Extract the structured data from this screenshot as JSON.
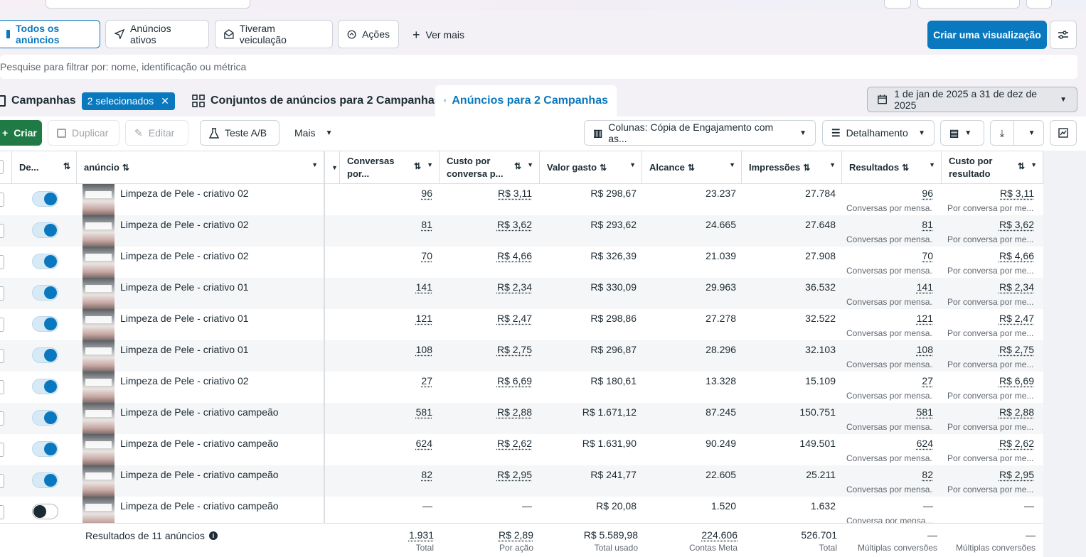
{
  "filters": {
    "all_ads": "Todos os anúncios",
    "active_ads": "Anúncios ativos",
    "delivered": "Tiveram veiculação",
    "actions": "Ações",
    "see_more": "Ver mais",
    "create_view": "Criar uma visualização"
  },
  "search": {
    "placeholder": "Pesquise para filtrar por: nome, identificação ou métrica"
  },
  "tabs": {
    "campaigns": "Campanhas",
    "selected_chip": "2 selecionados",
    "adsets": "Conjuntos de anúncios para 2 Campanhas",
    "ads": "Anúncios para 2 Campanhas"
  },
  "date_range": "1 de jan de 2025 a 31 de dez de 2025",
  "toolbar": {
    "create": "Criar",
    "duplicate": "Duplicar",
    "edit": "Editar",
    "ab_test": "Teste A/B",
    "more": "Mais",
    "columns": "Colunas: Cópia de Engajamento com as...",
    "breakdown": "Detalhamento"
  },
  "colors": {
    "accent": "#0a78be",
    "create_green": "#1f7a45"
  },
  "headers": {
    "delivery": "De...",
    "ad": "anúncio",
    "conversations": "Conversas por...",
    "cost_per_conv": "Custo por conversa p...",
    "spent": "Valor gasto",
    "reach": "Alcance",
    "impressions": "Impressões",
    "results": "Resultados",
    "cost_per_result": "Custo por resultado"
  },
  "rows": [
    {
      "name": "Limpeza de Pele - criativo 02",
      "on": true,
      "conv": "96",
      "cpc": "R$ 3,11",
      "spent": "R$ 298,67",
      "reach": "23.237",
      "impr": "27.784",
      "res": "96",
      "res_sub": "Conversas por mensa...",
      "cpr": "R$ 3,11",
      "cpr_sub": "Por conversa por me..."
    },
    {
      "name": "Limpeza de Pele - criativo 02",
      "on": true,
      "conv": "81",
      "cpc": "R$ 3,62",
      "spent": "R$ 293,62",
      "reach": "24.665",
      "impr": "27.648",
      "res": "81",
      "res_sub": "Conversas por mensa...",
      "cpr": "R$ 3,62",
      "cpr_sub": "Por conversa por me..."
    },
    {
      "name": "Limpeza de Pele - criativo 02",
      "on": true,
      "conv": "70",
      "cpc": "R$ 4,66",
      "spent": "R$ 326,39",
      "reach": "21.039",
      "impr": "27.908",
      "res": "70",
      "res_sub": "Conversas por mensa...",
      "cpr": "R$ 4,66",
      "cpr_sub": "Por conversa por me..."
    },
    {
      "name": "Limpeza de Pele - criativo 01",
      "on": true,
      "conv": "141",
      "cpc": "R$ 2,34",
      "spent": "R$ 330,09",
      "reach": "29.963",
      "impr": "36.532",
      "res": "141",
      "res_sub": "Conversas por mensa...",
      "cpr": "R$ 2,34",
      "cpr_sub": "Por conversa por me..."
    },
    {
      "name": "Limpeza de Pele - criativo 01",
      "on": true,
      "conv": "121",
      "cpc": "R$ 2,47",
      "spent": "R$ 298,86",
      "reach": "27.278",
      "impr": "32.522",
      "res": "121",
      "res_sub": "Conversas por mensa...",
      "cpr": "R$ 2,47",
      "cpr_sub": "Por conversa por me..."
    },
    {
      "name": "Limpeza de Pele - criativo 01",
      "on": true,
      "conv": "108",
      "cpc": "R$ 2,75",
      "spent": "R$ 296,87",
      "reach": "28.296",
      "impr": "32.103",
      "res": "108",
      "res_sub": "Conversas por mensa...",
      "cpr": "R$ 2,75",
      "cpr_sub": "Por conversa por me..."
    },
    {
      "name": "Limpeza de Pele - criativo 02",
      "on": true,
      "conv": "27",
      "cpc": "R$ 6,69",
      "spent": "R$ 180,61",
      "reach": "13.328",
      "impr": "15.109",
      "res": "27",
      "res_sub": "Conversas por mensa...",
      "cpr": "R$ 6,69",
      "cpr_sub": "Por conversa por me..."
    },
    {
      "name": "Limpeza de Pele - criativo campeão",
      "on": true,
      "conv": "581",
      "cpc": "R$ 2,88",
      "spent": "R$ 1.671,12",
      "reach": "87.245",
      "impr": "150.751",
      "res": "581",
      "res_sub": "Conversas por mensa...",
      "cpr": "R$ 2,88",
      "cpr_sub": "Por conversa por me..."
    },
    {
      "name": "Limpeza de Pele - criativo campeão",
      "on": true,
      "conv": "624",
      "cpc": "R$ 2,62",
      "spent": "R$ 1.631,90",
      "reach": "90.249",
      "impr": "149.501",
      "res": "624",
      "res_sub": "Conversas por mensa...",
      "cpr": "R$ 2,62",
      "cpr_sub": "Por conversa por me..."
    },
    {
      "name": "Limpeza de Pele - criativo campeão",
      "on": true,
      "conv": "82",
      "cpc": "R$ 2,95",
      "spent": "R$ 241,77",
      "reach": "22.605",
      "impr": "25.211",
      "res": "82",
      "res_sub": "Conversas por mensa...",
      "cpr": "R$ 2,95",
      "cpr_sub": "Por conversa por me..."
    },
    {
      "name": "Limpeza de Pele - criativo campeão",
      "on": false,
      "conv": "—",
      "cpc": "—",
      "spent": "R$ 20,08",
      "reach": "1.520",
      "impr": "1.632",
      "res": "—",
      "res_sub": "Conversa por mensa...",
      "cpr": "—",
      "cpr_sub": ""
    }
  ],
  "footer": {
    "label": "Resultados de 11 anúncios",
    "conv": "1.931",
    "conv_sub": "Total",
    "cpc": "R$ 2,89",
    "cpc_sub": "Por ação",
    "spent": "R$ 5.589,98",
    "spent_sub": "Total usado",
    "reach": "224.606",
    "reach_sub": "Contas Meta",
    "impr": "526.701",
    "impr_sub": "Total",
    "res": "—",
    "res_sub": "Múltiplas conversões",
    "cpr": "—",
    "cpr_sub": "Múltiplas conversões"
  }
}
